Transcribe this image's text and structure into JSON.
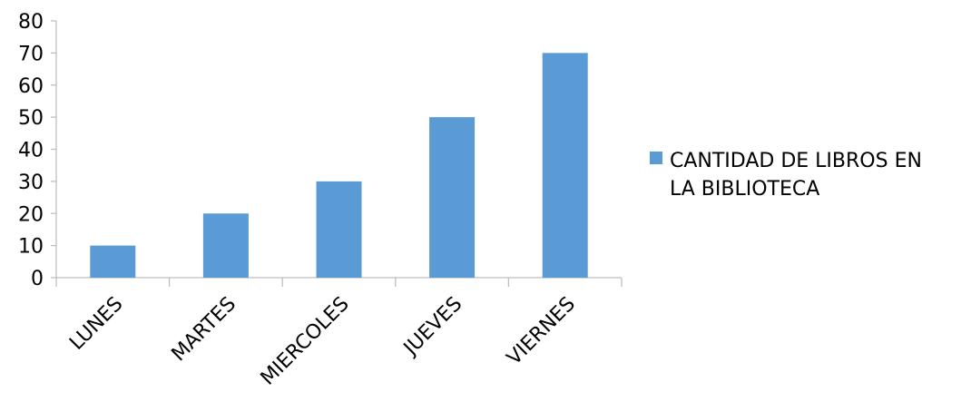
{
  "chart_data": {
    "type": "bar",
    "categories": [
      "LUNES",
      "MARTES",
      "MIERCOLES",
      "JUEVES",
      "VIERNES"
    ],
    "series": [
      {
        "name": "CANTIDAD DE LIBROS EN LA BIBLIOTECA",
        "values": [
          10,
          20,
          30,
          50,
          70
        ],
        "color": "#5b9bd5"
      }
    ],
    "title": "",
    "xlabel": "",
    "ylabel": "",
    "ylim": [
      0,
      80
    ],
    "yticks": [
      0,
      10,
      20,
      30,
      40,
      50,
      60,
      70,
      80
    ],
    "grid": false,
    "legend": {
      "position": "right",
      "lines": [
        "CANTIDAD DE LIBROS EN",
        "LA BIBLIOTECA"
      ]
    },
    "axis_color": "#bfbfbf"
  }
}
